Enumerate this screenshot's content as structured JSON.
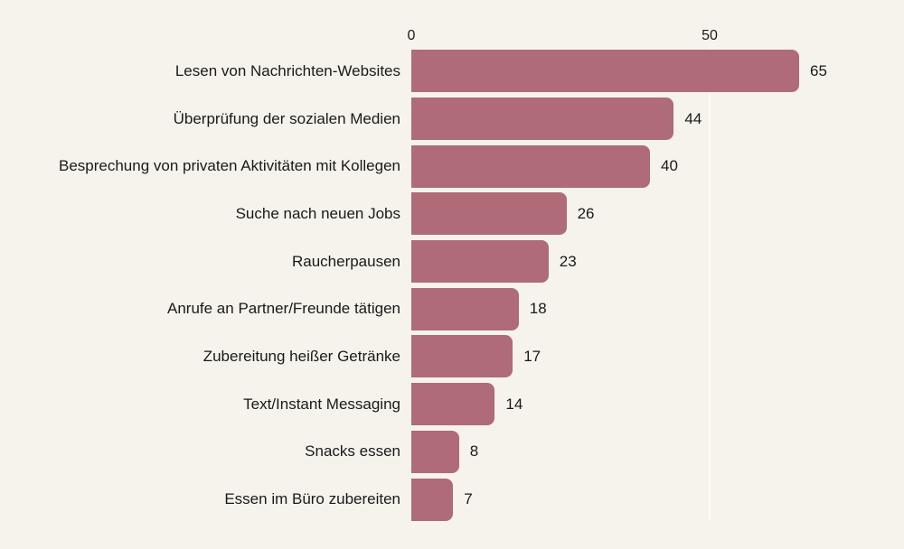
{
  "chart_data": {
    "type": "bar",
    "orientation": "horizontal",
    "title": "",
    "xlabel": "",
    "ylabel": "",
    "categories": [
      "Lesen von Nachrichten-Websites",
      "Überprüfung der sozialen Medien",
      "Besprechung von privaten Aktivitäten mit Kollegen",
      "Suche nach neuen Jobs",
      "Raucherpausen",
      "Anrufe an Partner/Freunde tätigen",
      "Zubereitung heißer Getränke",
      "Text/Instant Messaging",
      "Snacks essen",
      "Essen im Büro zubereiten"
    ],
    "values": [
      65,
      44,
      40,
      26,
      23,
      18,
      17,
      14,
      8,
      7
    ],
    "xticks": [
      "0",
      "50"
    ],
    "xlim": [
      0,
      80
    ],
    "grid": "vertical-gridline-at-50",
    "legend": "none",
    "colors": {
      "bar": "#af6b77",
      "background": "#f5f3eb",
      "text": "#1a1a1a",
      "gridline": "#fcfbf4"
    }
  }
}
